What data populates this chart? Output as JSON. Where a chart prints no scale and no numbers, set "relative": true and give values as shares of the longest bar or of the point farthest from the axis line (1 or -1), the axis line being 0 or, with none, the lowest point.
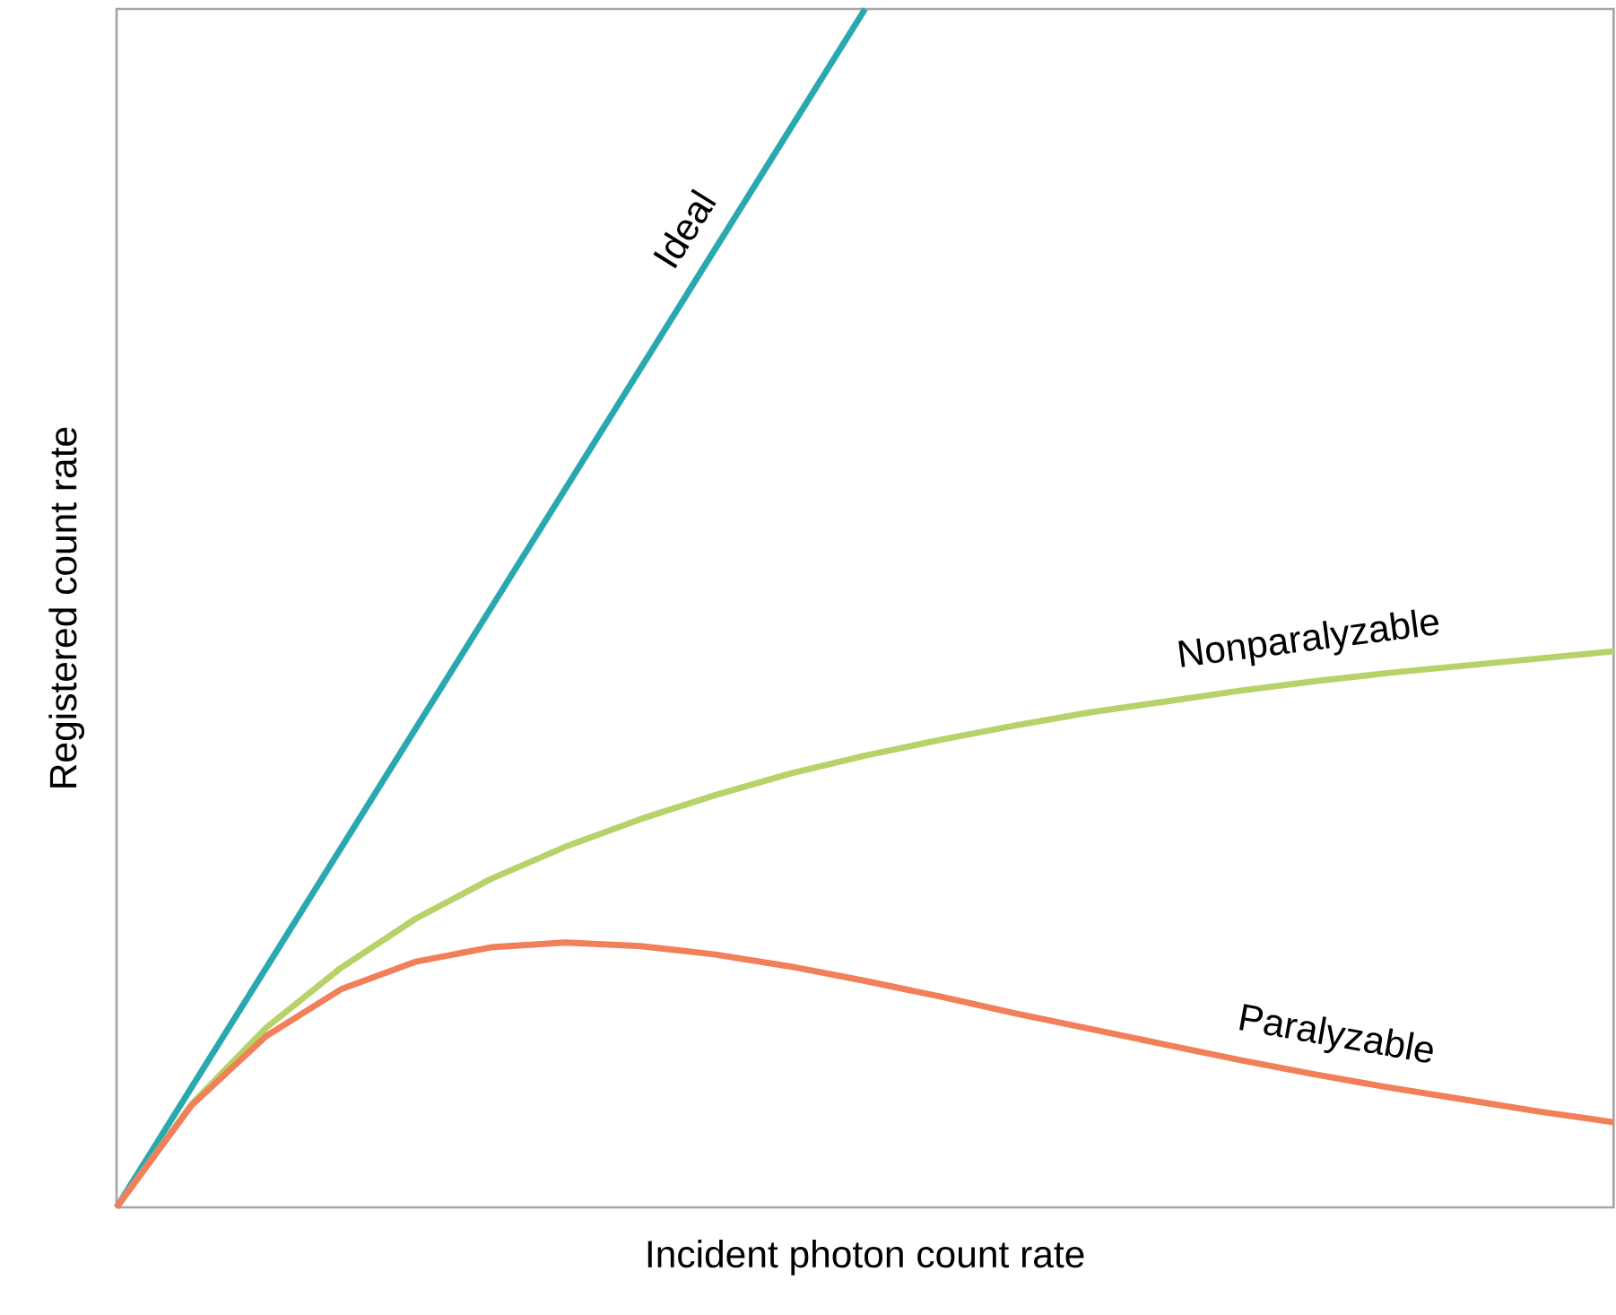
{
  "chart_data": {
    "type": "line",
    "relative": true,
    "xlabel": "Incident photon count rate",
    "ylabel": "Registered count rate",
    "categories": [
      null,
      null,
      null,
      null,
      null,
      null,
      null,
      null,
      null,
      null,
      null,
      null,
      null,
      null,
      null,
      null,
      null,
      null,
      null,
      null,
      null
    ],
    "series": [
      {
        "name": "Ideal",
        "color": "#2aa8b0",
        "values": [
          0,
          0.1,
          0.2,
          0.3,
          0.4,
          0.5,
          0.6,
          0.7,
          0.8,
          0.9,
          1.0,
          null,
          null,
          null,
          null,
          null,
          null,
          null,
          null,
          null,
          null
        ]
      },
      {
        "name": "Nonparalyzable",
        "color": "#b8d26a",
        "values": [
          0,
          0.086,
          0.15,
          0.2,
          0.241,
          0.274,
          0.301,
          0.324,
          0.344,
          0.362,
          0.377,
          0.39,
          0.402,
          0.413,
          0.422,
          0.431,
          0.439,
          0.446,
          0.452,
          0.458,
          0.464
        ]
      },
      {
        "name": "Paralyzable",
        "color": "#f07f5a",
        "values": [
          0,
          0.085,
          0.143,
          0.182,
          0.205,
          0.217,
          0.221,
          0.218,
          0.211,
          0.201,
          0.189,
          0.176,
          0.162,
          0.149,
          0.136,
          0.123,
          0.111,
          0.1,
          0.09,
          0.08,
          0.071
        ]
      }
    ],
    "marker": "none",
    "line_style": "solid"
  }
}
